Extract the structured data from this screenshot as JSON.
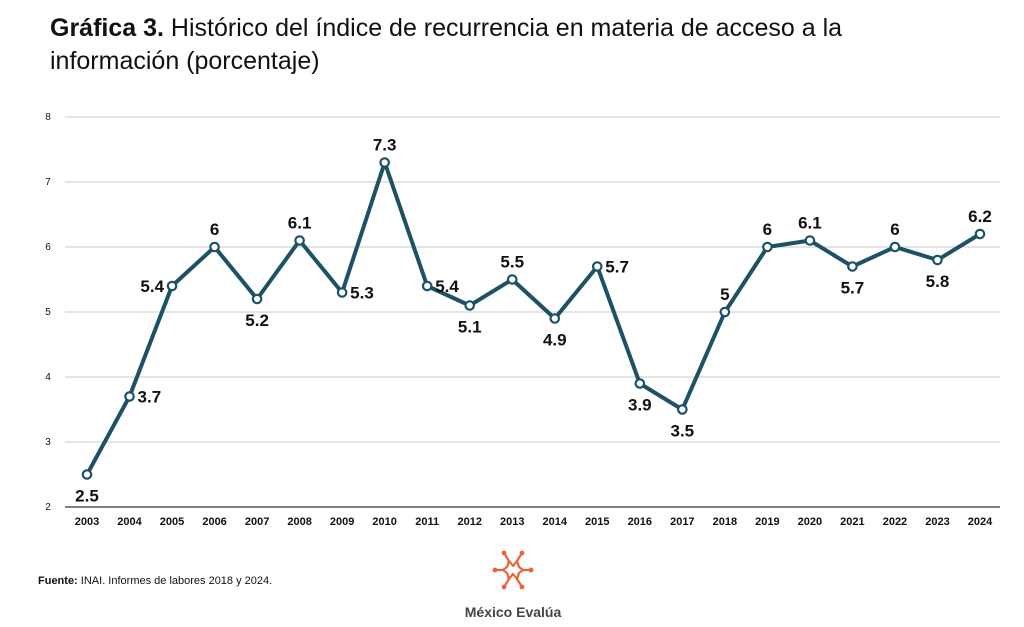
{
  "title": {
    "prefix": "Gráfica 3.",
    "text": "Histórico del índice de recurrencia en materia de acceso a la información (porcentaje)"
  },
  "source": {
    "label": "Fuente:",
    "text": "INAI. Informes de labores 2018 y 2024."
  },
  "logo": {
    "text": "México Evalúa",
    "icon": "mexico-evalua-star-logo"
  },
  "colors": {
    "line": "#1d5166",
    "grid": "#c8c8c8",
    "axis": "#333333",
    "logo_orange": "#e8643a"
  },
  "chart_data": {
    "type": "line",
    "x": [
      "2003",
      "2004",
      "2005",
      "2006",
      "2007",
      "2008",
      "2009",
      "2010",
      "2011",
      "2012",
      "2013",
      "2014",
      "2015",
      "2016",
      "2017",
      "2018",
      "2019",
      "2020",
      "2021",
      "2022",
      "2023",
      "2024"
    ],
    "series": [
      {
        "values": [
          2.5,
          3.7,
          5.4,
          6,
          5.2,
          6.1,
          5.3,
          7.3,
          5.4,
          5.1,
          5.5,
          4.9,
          5.7,
          3.9,
          3.5,
          5,
          6,
          6.1,
          5.7,
          6,
          5.8,
          6.2
        ]
      }
    ],
    "data_labels": [
      "2.5",
      "3.7",
      "5.4",
      "6",
      "5.2",
      "6.1",
      "5.3",
      "7.3",
      "5.4",
      "5.1",
      "5.5",
      "4.9",
      "5.7",
      "3.9",
      "3.5",
      "5",
      "6",
      "6.1",
      "5.7",
      "6",
      "5.8",
      "6.2"
    ],
    "label_positions": [
      "below",
      "right",
      "left",
      "above",
      "below",
      "above",
      "right",
      "above",
      "right",
      "below",
      "above",
      "below",
      "right",
      "below",
      "below",
      "above",
      "above",
      "above",
      "below",
      "above",
      "below",
      "above"
    ],
    "yticks": [
      "2",
      "3",
      "4",
      "5",
      "6",
      "7",
      "8"
    ],
    "ylim": [
      2,
      8
    ],
    "grid": true,
    "xlabel": "",
    "ylabel": ""
  }
}
